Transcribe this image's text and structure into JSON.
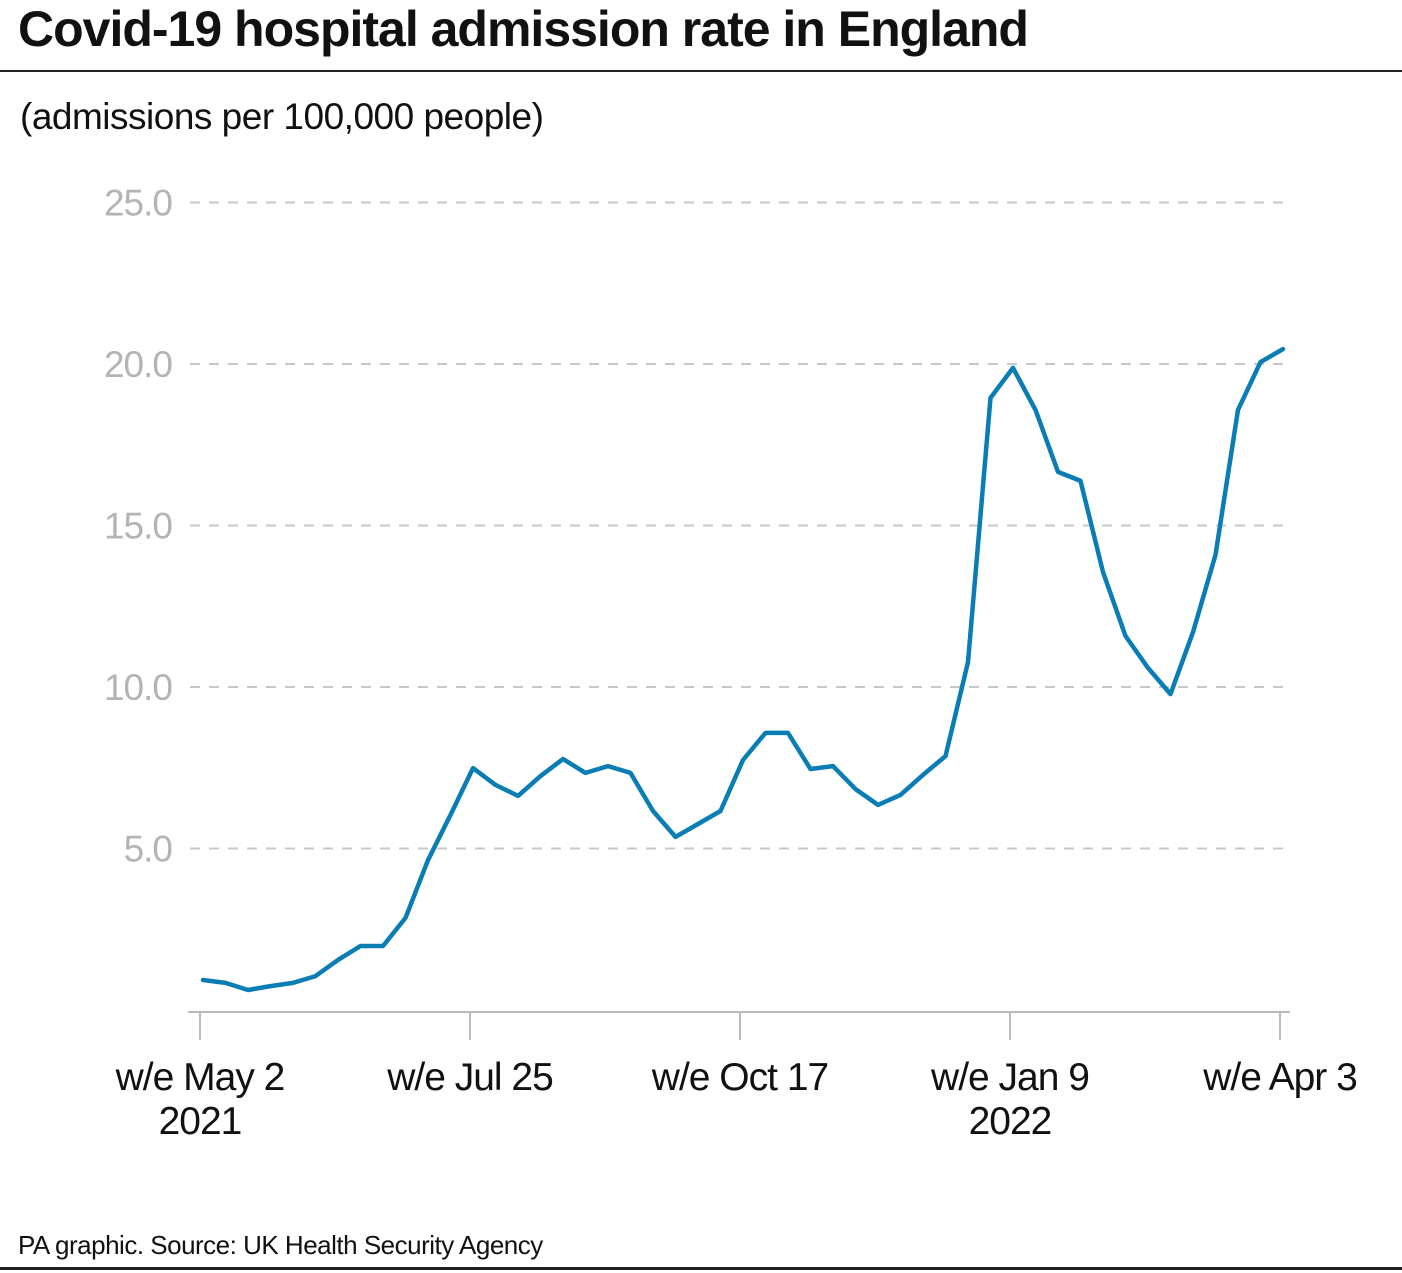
{
  "chart_data": {
    "type": "line",
    "title": "Covid-19 hospital admission rate in England",
    "subtitle": "(admissions per 100,000 people)",
    "source": "PA graphic. Source: UK Health Security Agency",
    "ylim": [
      0,
      25
    ],
    "yticks": [
      5,
      10,
      15,
      20,
      25
    ],
    "ytick_labels": [
      "5.0",
      "10.0",
      "15.0",
      "20.0",
      "25.0"
    ],
    "grid": "horizontal dashed",
    "xtick_labels": [
      {
        "date": "2021-05-02",
        "line1": "w/e May 2",
        "line2": "2021"
      },
      {
        "date": "2021-07-25",
        "line1": "w/e Jul 25",
        "line2": ""
      },
      {
        "date": "2021-10-17",
        "line1": "w/e Oct 17",
        "line2": ""
      },
      {
        "date": "2022-01-09",
        "line1": "w/e Jan 9",
        "line2": "2022"
      },
      {
        "date": "2022-04-03",
        "line1": "w/e Apr 3",
        "line2": ""
      }
    ],
    "colors": {
      "line": "#0a7db5",
      "grid": "#c8c8c8",
      "ytick": "#b4b4b4"
    },
    "x": [
      "2021-05-02",
      "2021-05-09",
      "2021-05-16",
      "2021-05-23",
      "2021-05-30",
      "2021-06-06",
      "2021-06-13",
      "2021-06-20",
      "2021-06-27",
      "2021-07-04",
      "2021-07-11",
      "2021-07-18",
      "2021-07-25",
      "2021-08-01",
      "2021-08-08",
      "2021-08-15",
      "2021-08-22",
      "2021-08-29",
      "2021-09-05",
      "2021-09-12",
      "2021-09-19",
      "2021-09-26",
      "2021-10-03",
      "2021-10-10",
      "2021-10-17",
      "2021-10-24",
      "2021-10-31",
      "2021-11-07",
      "2021-11-14",
      "2021-11-21",
      "2021-11-28",
      "2021-12-05",
      "2021-12-12",
      "2021-12-19",
      "2021-12-26",
      "2022-01-02",
      "2022-01-09",
      "2022-01-16",
      "2022-01-23",
      "2022-01-30",
      "2022-02-06",
      "2022-02-13",
      "2022-02-20",
      "2022-02-27",
      "2022-03-06",
      "2022-03-13",
      "2022-03-20",
      "2022-03-27",
      "2022-04-03"
    ],
    "values": [
      0.93,
      0.84,
      0.62,
      0.74,
      0.84,
      1.05,
      1.55,
      1.98,
      1.98,
      2.85,
      4.64,
      6.04,
      7.49,
      6.97,
      6.63,
      7.24,
      7.77,
      7.34,
      7.55,
      7.34,
      6.16,
      5.36,
      5.76,
      6.16,
      7.74,
      8.58,
      8.58,
      7.46,
      7.55,
      6.84,
      6.35,
      6.66,
      7.28,
      7.86,
      10.77,
      18.95,
      19.88,
      18.58,
      16.66,
      16.38,
      13.56,
      11.58,
      10.59,
      9.78,
      11.7,
      14.09,
      18.58,
      20.06,
      20.46
    ]
  }
}
